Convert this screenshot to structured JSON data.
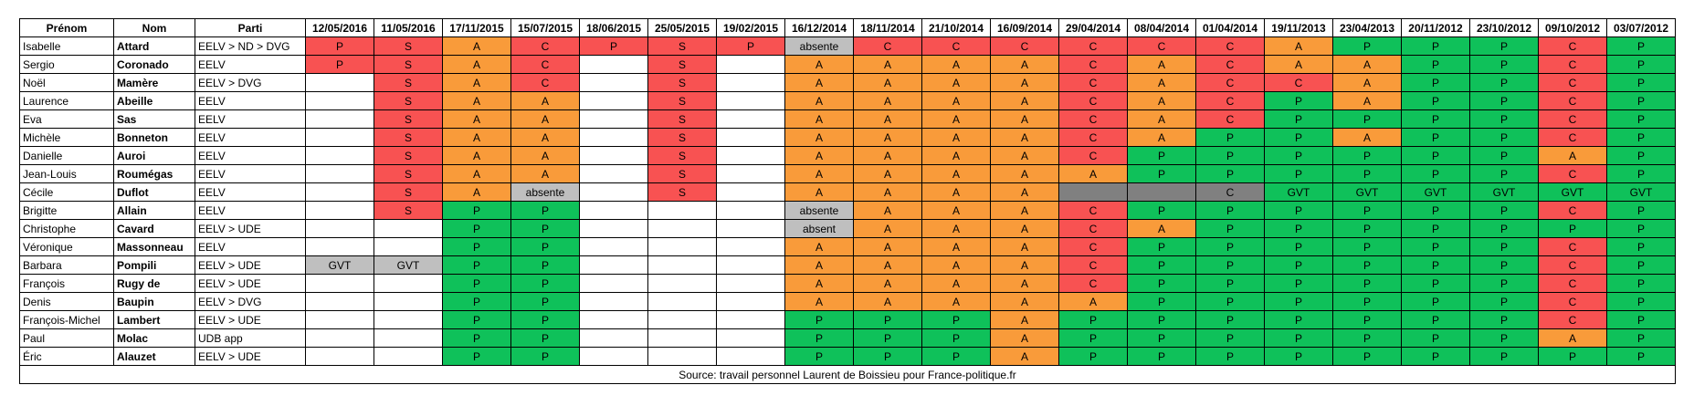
{
  "table": {
    "header": [
      "Prénom",
      "Nom",
      "Parti",
      "12/05/2016",
      "11/05/2016",
      "17/11/2015",
      "15/07/2015",
      "18/06/2015",
      "25/05/2015",
      "19/02/2015",
      "16/12/2014",
      "18/11/2014",
      "21/10/2014",
      "16/09/2014",
      "29/04/2014",
      "08/04/2014",
      "01/04/2014",
      "19/11/2013",
      "23/04/2013",
      "20/11/2012",
      "23/10/2012",
      "09/10/2012",
      "03/07/2012"
    ],
    "palette": {
      "r": "#f85252",
      "o": "#f99b3a",
      "g": "#0fc15a",
      "x": "#bfbfbf",
      "d": "#808080",
      "w": "#ffffff"
    },
    "rows": [
      {
        "prenom": "Isabelle",
        "nom": "Attard",
        "parti": "EELV > ND > DVG",
        "votes": [
          "P",
          "S",
          "A",
          "C",
          "P",
          "S",
          "P",
          "absente",
          "C",
          "C",
          "C",
          "C",
          "C",
          "C",
          "A",
          "P",
          "P",
          "P",
          "C",
          "P"
        ],
        "fills": "rrorrrrxrrrrrrogggrg"
      },
      {
        "prenom": "Sergio",
        "nom": "Coronado",
        "parti": "EELV",
        "votes": [
          "P",
          "S",
          "A",
          "C",
          null,
          "S",
          null,
          "A",
          "A",
          "A",
          "A",
          "C",
          "A",
          "C",
          "A",
          "A",
          "P",
          "P",
          "C",
          "P"
        ],
        "fills": "rrorwrwoooororooggrg"
      },
      {
        "prenom": "Noël",
        "nom": "Mamère",
        "parti": "EELV > DVG",
        "votes": [
          null,
          "S",
          "A",
          "C",
          null,
          "S",
          null,
          "A",
          "A",
          "A",
          "A",
          "C",
          "A",
          "C",
          "C",
          "A",
          "P",
          "P",
          "C",
          "P"
        ],
        "fills": "wrorwrwoooororroggrg"
      },
      {
        "prenom": "Laurence",
        "nom": "Abeille",
        "parti": "EELV",
        "votes": [
          null,
          "S",
          "A",
          "A",
          null,
          "S",
          null,
          "A",
          "A",
          "A",
          "A",
          "C",
          "A",
          "C",
          "P",
          "A",
          "P",
          "P",
          "C",
          "P"
        ],
        "fills": "wroowrwoooororgoggrg"
      },
      {
        "prenom": "Eva",
        "nom": "Sas",
        "parti": "EELV",
        "votes": [
          null,
          "S",
          "A",
          "A",
          null,
          "S",
          null,
          "A",
          "A",
          "A",
          "A",
          "C",
          "A",
          "C",
          "P",
          "P",
          "P",
          "P",
          "C",
          "P"
        ],
        "fills": "wroowrwoooororggggrg"
      },
      {
        "prenom": "Michèle",
        "nom": "Bonneton",
        "parti": "EELV",
        "votes": [
          null,
          "S",
          "A",
          "A",
          null,
          "S",
          null,
          "A",
          "A",
          "A",
          "A",
          "C",
          "A",
          "P",
          "P",
          "A",
          "P",
          "P",
          "C",
          "P"
        ],
        "fills": "wroowrwooooroggoggrg"
      },
      {
        "prenom": "Danielle",
        "nom": "Auroi",
        "parti": "EELV",
        "votes": [
          null,
          "S",
          "A",
          "A",
          null,
          "S",
          null,
          "A",
          "A",
          "A",
          "A",
          "C",
          "P",
          "P",
          "P",
          "P",
          "P",
          "P",
          "A",
          "P"
        ],
        "fills": "wroowrwoooorggggggog"
      },
      {
        "prenom": "Jean-Louis",
        "nom": "Roumégas",
        "parti": "EELV",
        "votes": [
          null,
          "S",
          "A",
          "A",
          null,
          "S",
          null,
          "A",
          "A",
          "A",
          "A",
          "A",
          "P",
          "P",
          "P",
          "P",
          "P",
          "P",
          "C",
          "P"
        ],
        "fills": "wroowrwoooooggggggrg"
      },
      {
        "prenom": "Cécile",
        "nom": "Duflot",
        "parti": "EELV",
        "votes": [
          null,
          "S",
          "A",
          "absente",
          null,
          "S",
          null,
          "A",
          "A",
          "A",
          "A",
          null,
          null,
          "C",
          "GVT",
          "GVT",
          "GVT",
          "GVT",
          "GVT",
          "GVT"
        ],
        "fills": "wroxwrwoooodddgggggg"
      },
      {
        "prenom": "Brigitte",
        "nom": "Allain",
        "parti": "EELV",
        "votes": [
          null,
          "S",
          "P",
          "P",
          null,
          null,
          null,
          "absente",
          "A",
          "A",
          "A",
          "C",
          "P",
          "P",
          "P",
          "P",
          "P",
          "P",
          "C",
          "P"
        ],
        "fills": "wrggwwwxooorggggggrg"
      },
      {
        "prenom": "Christophe",
        "nom": "Cavard",
        "parti": "EELV > UDE",
        "votes": [
          null,
          null,
          "P",
          "P",
          null,
          null,
          null,
          "absent",
          "A",
          "A",
          "A",
          "C",
          "A",
          "P",
          "P",
          "P",
          "P",
          "P",
          "P",
          "P"
        ],
        "fills": "wwggwwwxoooroggggggg"
      },
      {
        "prenom": "Véronique",
        "nom": "Massonneau",
        "parti": "EELV",
        "votes": [
          null,
          null,
          "P",
          "P",
          null,
          null,
          null,
          "A",
          "A",
          "A",
          "A",
          "C",
          "P",
          "P",
          "P",
          "P",
          "P",
          "P",
          "C",
          "P"
        ],
        "fills": "wwggwwwoooorggggggrg"
      },
      {
        "prenom": "Barbara",
        "nom": "Pompili",
        "parti": "EELV > UDE",
        "votes": [
          "GVT",
          "GVT",
          "P",
          "P",
          null,
          null,
          null,
          "A",
          "A",
          "A",
          "A",
          "C",
          "P",
          "P",
          "P",
          "P",
          "P",
          "P",
          "C",
          "P"
        ],
        "fills": "xxggwwwoooorggggggrg"
      },
      {
        "prenom": "François",
        "nom": "Rugy de",
        "parti": "EELV > UDE",
        "votes": [
          null,
          null,
          "P",
          "P",
          null,
          null,
          null,
          "A",
          "A",
          "A",
          "A",
          "C",
          "P",
          "P",
          "P",
          "P",
          "P",
          "P",
          "C",
          "P"
        ],
        "fills": "wwggwwwoooorggggggrg"
      },
      {
        "prenom": "Denis",
        "nom": "Baupin",
        "parti": "EELV > DVG",
        "votes": [
          null,
          null,
          "P",
          "P",
          null,
          null,
          null,
          "A",
          "A",
          "A",
          "A",
          "A",
          "P",
          "P",
          "P",
          "P",
          "P",
          "P",
          "C",
          "P"
        ],
        "fills": "wwggwwwoooooggggggrg"
      },
      {
        "prenom": "François-Michel",
        "nom": "Lambert",
        "parti": "EELV > UDE",
        "votes": [
          null,
          null,
          "P",
          "P",
          null,
          null,
          null,
          "P",
          "P",
          "P",
          "A",
          "P",
          "P",
          "P",
          "P",
          "P",
          "P",
          "P",
          "C",
          "P"
        ],
        "fills": "wwggwwwgggogggggggrg"
      },
      {
        "prenom": "Paul",
        "nom": "Molac",
        "parti": "UDB app",
        "votes": [
          null,
          null,
          "P",
          "P",
          null,
          null,
          null,
          "P",
          "P",
          "P",
          "A",
          "P",
          "P",
          "P",
          "P",
          "P",
          "P",
          "P",
          "A",
          "P"
        ],
        "fills": "wwggwwwgggogggggggog"
      },
      {
        "prenom": "Éric",
        "nom": "Alauzet",
        "parti": "EELV > UDE",
        "votes": [
          null,
          null,
          "P",
          "P",
          null,
          null,
          null,
          "P",
          "P",
          "P",
          "A",
          "P",
          "P",
          "P",
          "P",
          "P",
          "P",
          "P",
          "P",
          "P"
        ],
        "fills": "wwggwwwgggoggggggggg"
      }
    ],
    "source": "Source: travail personnel Laurent de Boissieu pour France-politique.fr"
  }
}
